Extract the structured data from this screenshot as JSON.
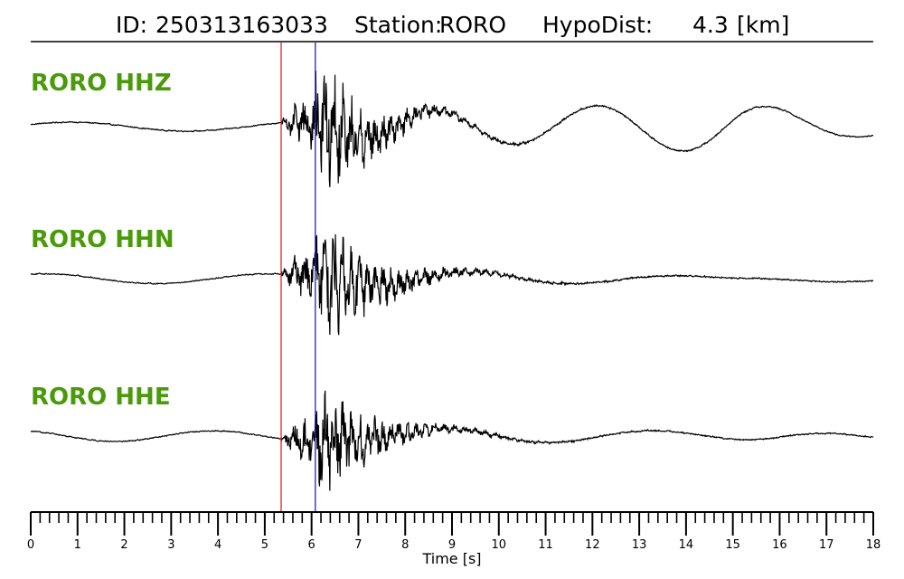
{
  "header": {
    "id_label": "ID:",
    "id_value": "250313163033",
    "station_label": "Station:",
    "station_value": "RORO",
    "hypodist_label": "HypoDist:",
    "hypodist_value": "4.3",
    "hypodist_unit": "[km]"
  },
  "colors": {
    "label": "#4a9a0a",
    "p_pick": "#e8201a",
    "s_pick": "#1f1fd0",
    "trace": "#000000"
  },
  "chart_data": {
    "type": "line",
    "xlabel": "Time [s]",
    "xlim": [
      0,
      18
    ],
    "x_ticks": [
      "0",
      "1",
      "2",
      "3",
      "4",
      "5",
      "6",
      "7",
      "8",
      "9",
      "10",
      "11",
      "12",
      "13",
      "14",
      "15",
      "16",
      "17",
      "18"
    ],
    "minor_tick_step": 0.2,
    "picks": [
      {
        "phase": "P",
        "time": 5.35
      },
      {
        "phase": "S",
        "time": 6.08
      }
    ],
    "traces": [
      {
        "label": "RORO HHZ",
        "bg_amp": 0.55,
        "bg_period": 5.0,
        "bg_phase": 0.5,
        "burst_amp": 5.5,
        "decay": 1.0,
        "late_lp_amp": 2.6,
        "late_lp_period": 3.6
      },
      {
        "label": "RORO HHN",
        "bg_amp": 0.6,
        "bg_period": 4.8,
        "bg_phase": 1.2,
        "burst_amp": 5.2,
        "decay": 0.9,
        "late_lp_amp": 0.5,
        "late_lp_period": 4.0
      },
      {
        "label": "RORO HHE",
        "bg_amp": 0.65,
        "bg_period": 4.2,
        "bg_phase": 2.0,
        "burst_amp": 4.8,
        "decay": 0.95,
        "late_lp_amp": 0.9,
        "late_lp_period": 4.5
      }
    ]
  }
}
